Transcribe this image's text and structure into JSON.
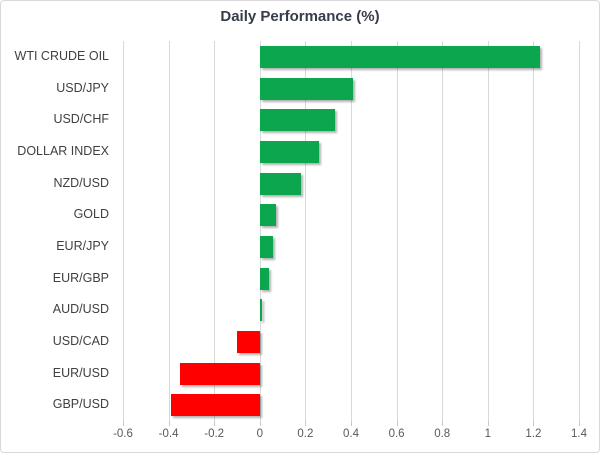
{
  "chart_data": {
    "type": "bar",
    "orientation": "horizontal",
    "title": "Daily Performance (%)",
    "categories": [
      "WTI CRUDE OIL",
      "USD/JPY",
      "USD/CHF",
      "DOLLAR INDEX",
      "NZD/USD",
      "GOLD",
      "EUR/JPY",
      "EUR/GBP",
      "AUD/USD",
      "USD/CAD",
      "EUR/USD",
      "GBP/USD"
    ],
    "values": [
      1.23,
      0.41,
      0.33,
      0.26,
      0.18,
      0.07,
      0.06,
      0.04,
      0.01,
      -0.1,
      -0.35,
      -0.39
    ],
    "x_ticks": [
      -0.6,
      -0.4,
      -0.2,
      0,
      0.2,
      0.4,
      0.6,
      0.8,
      1,
      1.2,
      1.4
    ],
    "x_tick_labels": [
      "-0.6",
      "-0.4",
      "-0.2",
      "0",
      "0.2",
      "0.4",
      "0.6",
      "0.8",
      "1",
      "1.2",
      "1.4"
    ],
    "xlim": [
      -0.6,
      1.4
    ],
    "grid": "vertical",
    "legend": "none",
    "colors": {
      "positive": "#0ca64f",
      "negative": "#ff0000",
      "gridline": "#d9d9d9",
      "title_text": "#363c4a",
      "category_text": "#404040",
      "tick_text": "#595959"
    }
  }
}
